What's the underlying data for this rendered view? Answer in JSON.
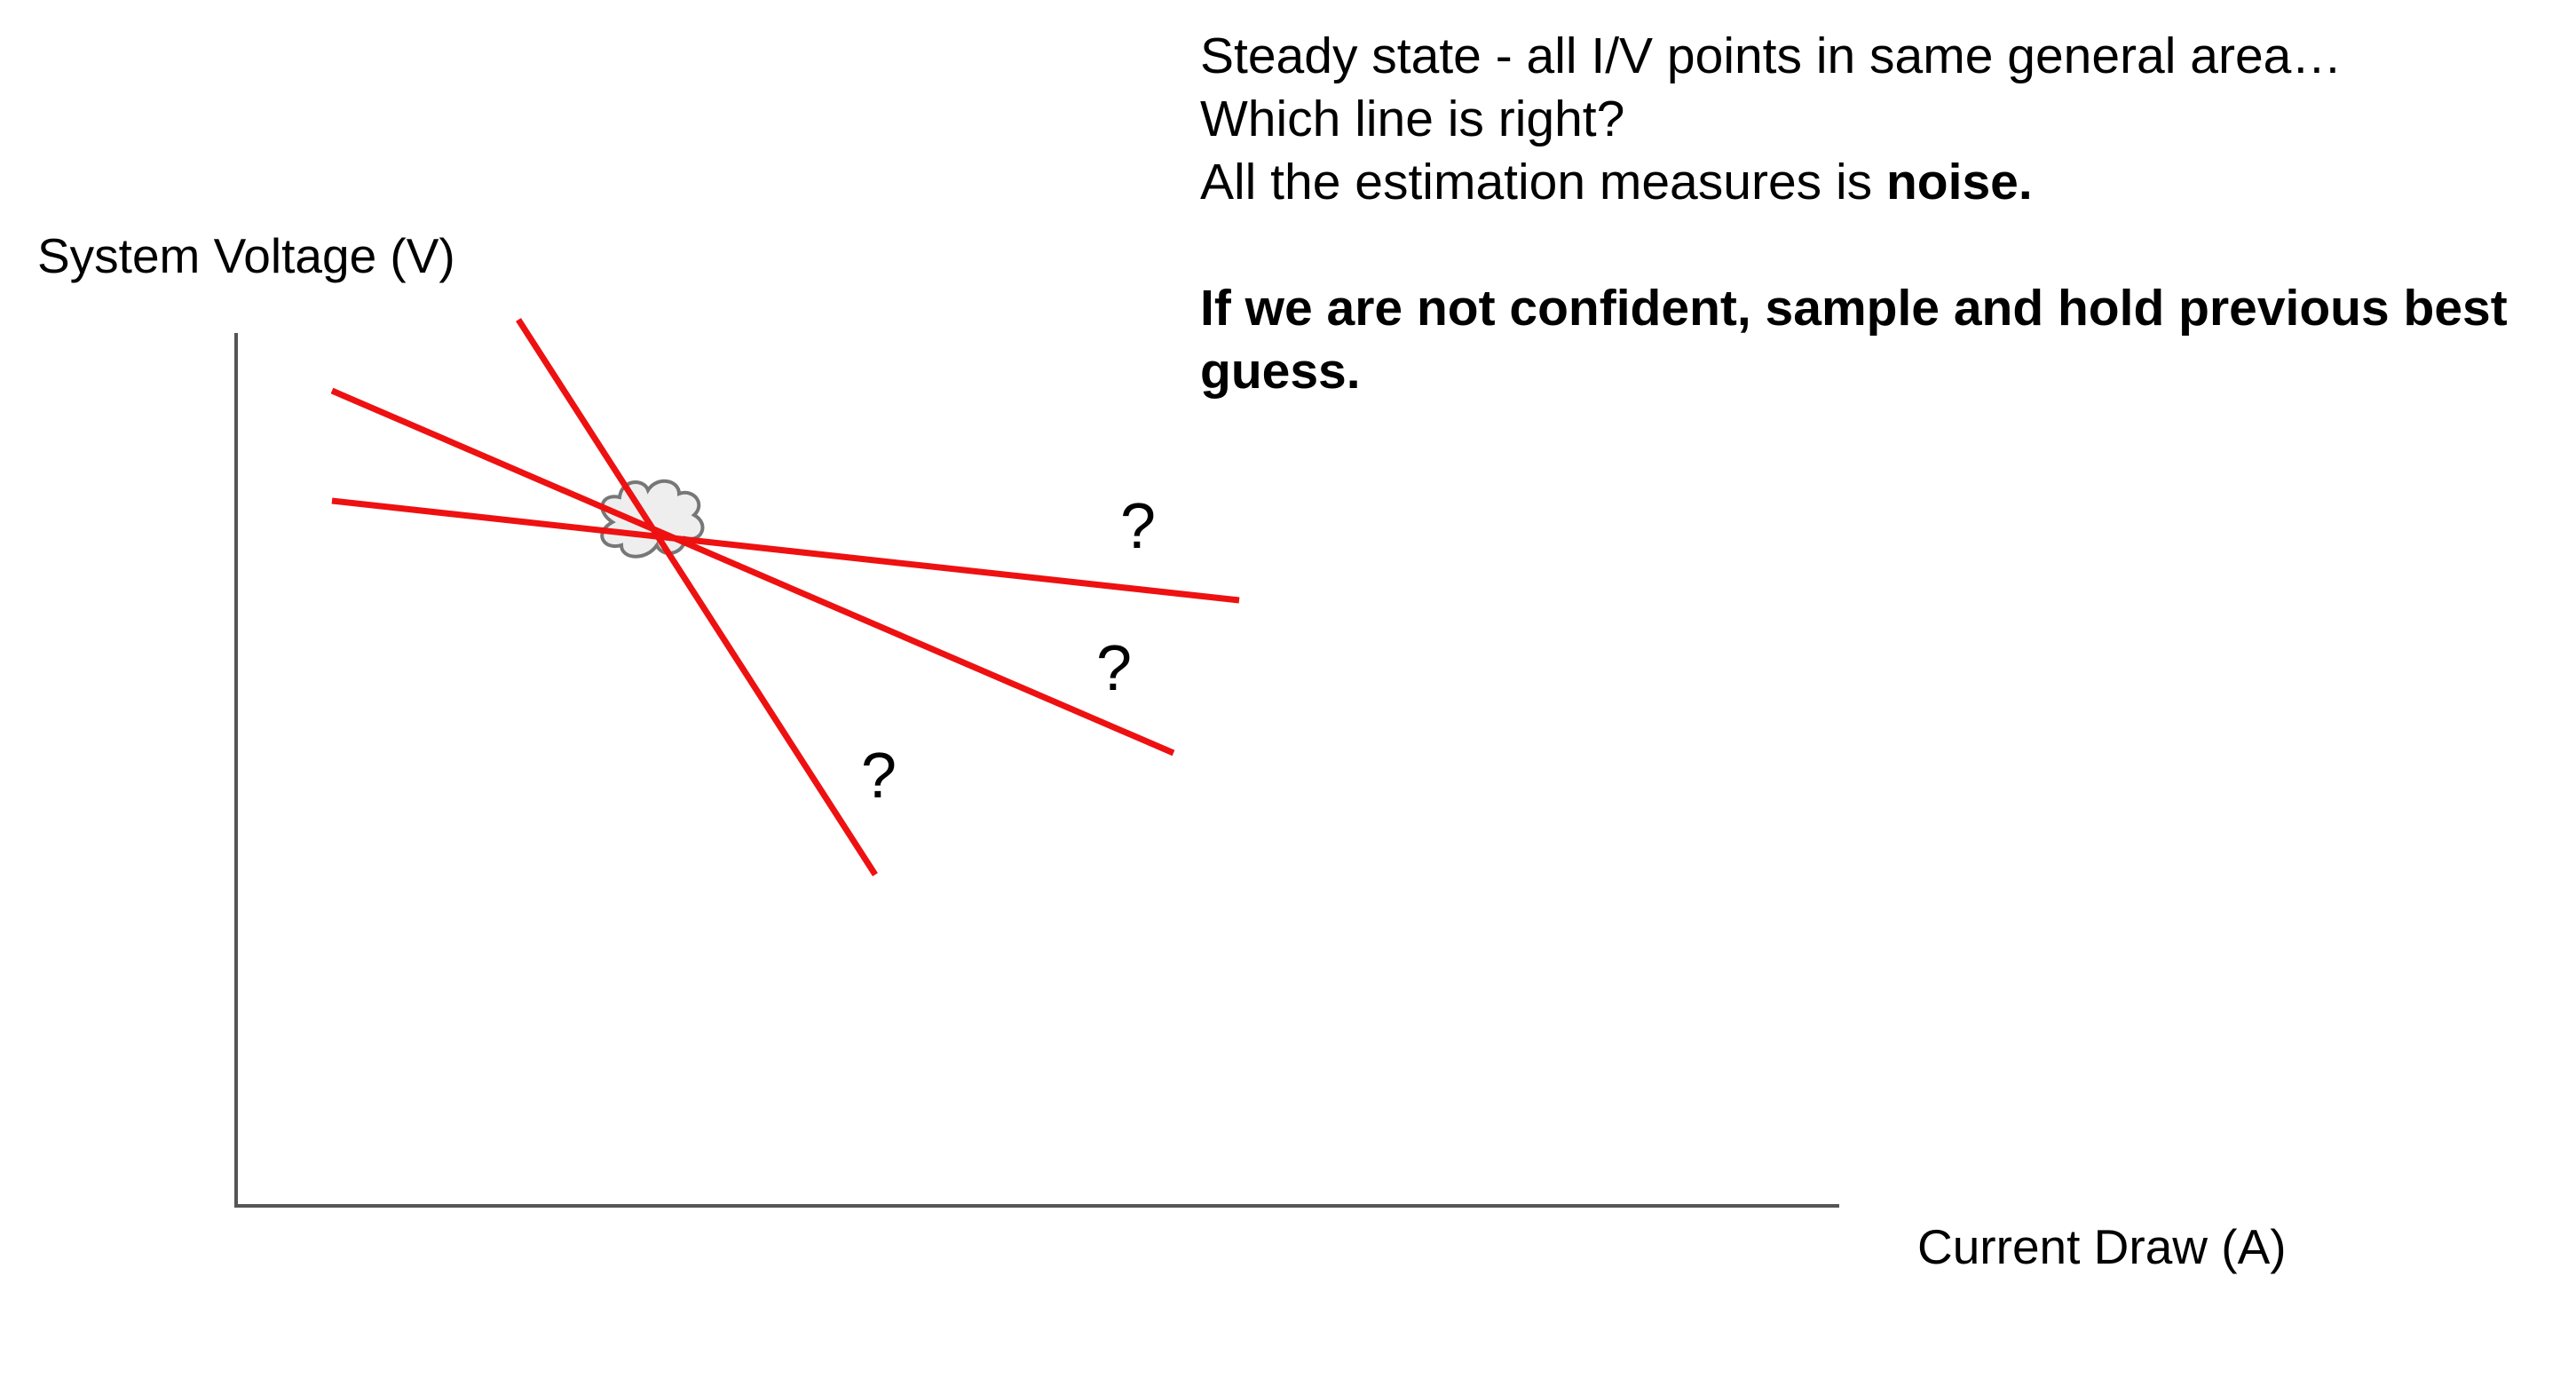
{
  "notes": {
    "line1": "Steady state - all I/V points in same general area…",
    "line2": "Which line is right?",
    "line3_prefix": "All the estimation measures is ",
    "line3_bold": "noise.",
    "line4_bold": "If we are not confident, sample and hold previous best guess."
  },
  "axes": {
    "ylabel": "System Voltage (V)",
    "xlabel": "Current Draw (A)"
  },
  "diagram": {
    "line_color": "#ee1111",
    "axis_color": "#555555",
    "cluster_icon": "cloud-icon",
    "candidate_lines": [
      {
        "id": "steep",
        "marker": "?"
      },
      {
        "id": "medium",
        "marker": "?"
      },
      {
        "id": "shallow",
        "marker": "?"
      }
    ]
  }
}
